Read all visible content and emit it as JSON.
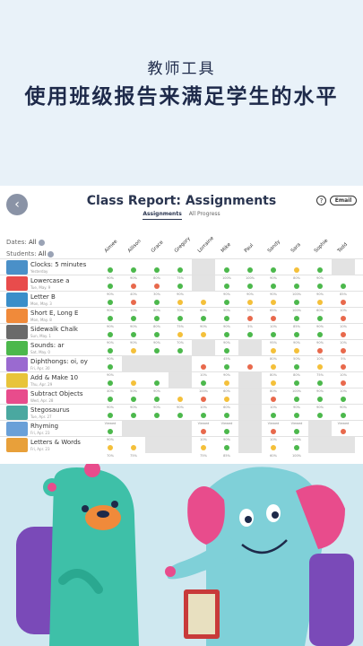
{
  "banner": {
    "line1": "教师工具",
    "line2": "使用班级报告来满足学生的水平"
  },
  "header": {
    "title": "Class Report: Assignments",
    "help": "?",
    "email": "Email"
  },
  "tabs": [
    "Assignments",
    "All Progress"
  ],
  "filters": {
    "dates_label": "Dates:",
    "dates_value": "All",
    "students_label": "Students:",
    "students_value": "All"
  },
  "students": [
    "Aimee",
    "Allison",
    "Grace",
    "Gregory",
    "Lorraine",
    "Mike",
    "Paul",
    "Sandy",
    "Sara",
    "Sophie",
    "Todd"
  ],
  "assignments": [
    {
      "name": "Clocks: 5 minutes",
      "date": "Yesterday",
      "thumb": "#4a90c8",
      "marks": [
        "g",
        "g",
        "g",
        "g",
        "",
        "g",
        "g",
        "g",
        "y",
        "g",
        ""
      ],
      "pcts": [
        "90%",
        "90%",
        "80%",
        "75%",
        "",
        "100%",
        "100%",
        "90%",
        "80%",
        "90%",
        ""
      ]
    },
    {
      "name": "Lowercase a",
      "date": "Tue, May. 9",
      "thumb": "#e84c4c",
      "marks": [
        "g",
        "r",
        "r",
        "g",
        "",
        "g",
        "g",
        "g",
        "g",
        "g",
        "g"
      ],
      "pcts": [
        "90%",
        "40%",
        "30%",
        "90%",
        "",
        "90%",
        "90%",
        "90%",
        "100%",
        "90%",
        "85%"
      ]
    },
    {
      "name": "Letter B",
      "date": "Mon, May. 3",
      "thumb": "#3a8ec9",
      "marks": [
        "g",
        "r",
        "g",
        "y",
        "y",
        "g",
        "y",
        "y",
        "g",
        "y",
        "r"
      ],
      "pcts": [
        "90%",
        "10%",
        "80%",
        "70%",
        "60%",
        "90%",
        "70%",
        "65%",
        "100%",
        "60%",
        "10%"
      ]
    },
    {
      "name": "Short E, Long E",
      "date": "Mon, May. 8",
      "thumb": "#f08a3a",
      "marks": [
        "g",
        "g",
        "g",
        "g",
        "g",
        "g",
        "r",
        "r",
        "g",
        "g",
        "r"
      ],
      "pcts": [
        "90%",
        "90%",
        "80%",
        "75%",
        "90%",
        "90%",
        "5%",
        "10%",
        "85%",
        "90%",
        "10%"
      ]
    },
    {
      "name": "Sidewalk Chalk",
      "date": "Sun, May. 1",
      "thumb": "#6a6a6a",
      "marks": [
        "g",
        "g",
        "g",
        "y",
        "y",
        "g",
        "g",
        "g",
        "g",
        "g",
        "r"
      ],
      "pcts": [
        "90%",
        "90%",
        "90%",
        "70%",
        "100%",
        "90%",
        "90%",
        "95%",
        "90%",
        "90%",
        "10%"
      ]
    },
    {
      "name": "Sounds: ar",
      "date": "Sat, May. 0",
      "thumb": "#4cb84c",
      "marks": [
        "g",
        "y",
        "g",
        "g",
        "",
        "g",
        "",
        "y",
        "y",
        "r",
        "r"
      ],
      "pcts": [
        "90%",
        "50%",
        "90%",
        "5%",
        "",
        "45%",
        "",
        "80%",
        "50%",
        "10%",
        "5%"
      ]
    },
    {
      "name": "Diphthongs: oi, oy",
      "date": "Fri, Apr. 30",
      "thumb": "#9a6ad0",
      "marks": [
        "g",
        "",
        "",
        "",
        "r",
        "g",
        "r",
        "y",
        "g",
        "y",
        "r"
      ],
      "pcts": [
        "90%",
        "",
        "",
        "",
        "10%",
        "90%",
        "50%",
        "80%",
        "80%",
        "75%",
        "10%"
      ]
    },
    {
      "name": "Add & Make 10",
      "date": "Thu, Apr. 29",
      "thumb": "#e8c43a",
      "marks": [
        "g",
        "y",
        "g",
        "",
        "g",
        "y",
        "",
        "y",
        "g",
        "g",
        "r"
      ],
      "pcts": [
        "40%",
        "50%",
        "90%",
        "",
        "100%",
        "60%",
        "",
        "80%",
        "100%",
        "90%",
        "10%"
      ]
    },
    {
      "name": "Subtract Objects",
      "date": "Wed, Apr. 28",
      "thumb": "#e84c8c",
      "marks": [
        "g",
        "g",
        "g",
        "y",
        "r",
        "y",
        "",
        "r",
        "g",
        "g",
        "g"
      ],
      "pcts": [
        "90%",
        "90%",
        "90%",
        "90%",
        "10%",
        "60%",
        "",
        "10%",
        "90%",
        "90%",
        "90%"
      ]
    },
    {
      "name": "Stegosaurus",
      "date": "Tue, Apr. 27",
      "thumb": "#4aa8a0",
      "marks": [
        "g",
        "g",
        "g",
        "g",
        "g",
        "g",
        "",
        "g",
        "g",
        "g",
        "g"
      ],
      "pcts": [
        "Viewed",
        "Viewed",
        "Viewed",
        "Viewed",
        "Viewed",
        "Viewed",
        "",
        "Viewed",
        "Viewed",
        "Viewed",
        "Viewed"
      ]
    },
    {
      "name": "Rhyming",
      "date": "Fri, Apr. 23",
      "thumb": "#6aa0d8",
      "marks": [
        "g",
        "",
        "",
        "",
        "r",
        "g",
        "",
        "r",
        "g",
        "",
        "r"
      ],
      "pcts": [
        "90%",
        "",
        "",
        "",
        "10%",
        "90%",
        "",
        "10%",
        "100%",
        "",
        "10%"
      ]
    },
    {
      "name": "Letters & Words",
      "date": "Fri, Apr. 23",
      "thumb": "#e8a03a",
      "marks": [
        "y",
        "y",
        "",
        "",
        "y",
        "g",
        "",
        "y",
        "g",
        "",
        ""
      ],
      "pcts": [
        "70%",
        "75%",
        "",
        "",
        "75%",
        "85%",
        "",
        "60%",
        "100%",
        "",
        ""
      ]
    }
  ],
  "colors": {
    "green": "#4cb84c",
    "yellow": "#f4c03a",
    "red": "#e8694c",
    "bear": "#3ec0a8",
    "elephant": "#7fd0d8",
    "backpack": "#7a4ab8"
  }
}
